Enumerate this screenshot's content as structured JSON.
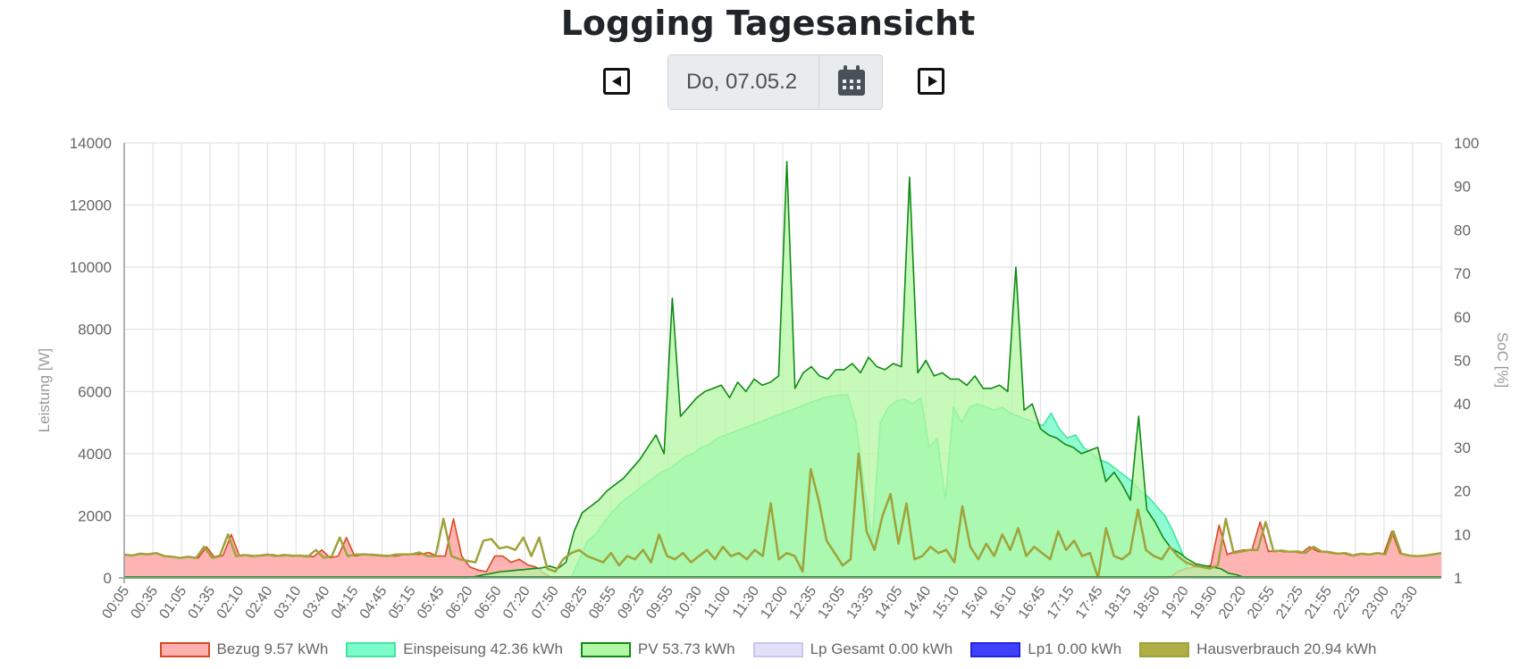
{
  "title": "Logging Tagesansicht",
  "date_value": "Do, 07.05.2",
  "icons": {
    "prev": "caret-left-square-icon",
    "next": "caret-right-square-icon",
    "calendar": "calendar-icon"
  },
  "chart_data": {
    "type": "area",
    "ylabel": "Leistung [W]",
    "y2label": "SoC [%]",
    "ylim": [
      0,
      14000
    ],
    "y2lim": [
      1,
      100
    ],
    "yticks": [
      "14000",
      "12000",
      "10000",
      "8000",
      "6000",
      "4000",
      "2000",
      "0"
    ],
    "y2ticks": [
      "100",
      "90",
      "80",
      "70",
      "60",
      "50",
      "40",
      "30",
      "20",
      "10",
      "1"
    ],
    "xticks": [
      "00:05",
      "00:35",
      "01:05",
      "01:35",
      "02:10",
      "02:40",
      "03:10",
      "03:40",
      "04:15",
      "04:45",
      "05:15",
      "05:45",
      "06:20",
      "06:50",
      "07:20",
      "07:50",
      "08:25",
      "08:55",
      "09:25",
      "09:55",
      "10:30",
      "11:00",
      "11:30",
      "12:00",
      "12:35",
      "13:05",
      "13:35",
      "14:05",
      "14:40",
      "15:10",
      "15:40",
      "16:10",
      "16:45",
      "17:15",
      "17:45",
      "18:15",
      "18:50",
      "19:20",
      "19:50",
      "20:20",
      "20:55",
      "21:25",
      "21:55",
      "22:25",
      "23:00",
      "23:30"
    ],
    "grid": true,
    "legend_position": "bottom",
    "series": [
      {
        "name": "Bezug 9.57 kWh",
        "fill": "#ffb0b0",
        "stroke": "#d84a1f",
        "values": [
          750,
          720,
          780,
          760,
          800,
          700,
          680,
          640,
          680,
          640,
          1000,
          650,
          720,
          1400,
          700,
          740,
          700,
          720,
          750,
          700,
          740,
          710,
          720,
          680,
          900,
          650,
          700,
          1300,
          700,
          750,
          760,
          740,
          720,
          700,
          750,
          760,
          760,
          820,
          700,
          700,
          1900,
          700,
          350,
          250,
          200,
          700,
          700,
          500,
          600,
          420,
          350,
          150,
          0,
          0,
          0,
          0,
          0,
          0,
          0,
          0,
          0,
          0,
          0,
          0,
          0,
          0,
          0,
          0,
          0,
          0,
          0,
          0,
          0,
          0,
          0,
          0,
          0,
          0,
          0,
          0,
          0,
          0,
          0,
          0,
          0,
          0,
          0,
          0,
          0,
          0,
          0,
          0,
          0,
          0,
          0,
          0,
          0,
          0,
          0,
          0,
          0,
          0,
          0,
          0,
          0,
          0,
          0,
          0,
          0,
          0,
          0,
          0,
          0,
          0,
          0,
          0,
          0,
          0,
          0,
          0,
          0,
          0,
          0,
          0,
          0,
          0,
          0,
          0,
          200,
          300,
          350,
          350,
          400,
          1700,
          750,
          850,
          900,
          900,
          1800,
          850,
          880,
          840,
          850,
          800,
          1000,
          850,
          830,
          780,
          800,
          720,
          780,
          750,
          800,
          760,
          1500,
          780,
          720,
          700,
          720,
          760,
          800
        ]
      },
      {
        "name": "Einspeisung 42.36 kWh",
        "fill": "#7dfcca",
        "stroke": "#3ee7a0",
        "values": [
          0,
          0,
          0,
          0,
          0,
          0,
          0,
          0,
          0,
          0,
          0,
          0,
          0,
          0,
          0,
          0,
          0,
          0,
          0,
          0,
          0,
          0,
          0,
          0,
          0,
          0,
          0,
          0,
          0,
          0,
          0,
          0,
          0,
          0,
          0,
          0,
          0,
          0,
          0,
          0,
          0,
          0,
          0,
          0,
          0,
          0,
          0,
          0,
          0,
          0,
          0,
          0,
          0,
          0,
          0,
          0,
          600,
          1200,
          1400,
          1800,
          2100,
          2400,
          2600,
          2800,
          3000,
          3200,
          3400,
          3500,
          3700,
          3900,
          4000,
          4200,
          4300,
          4500,
          4600,
          4700,
          4800,
          4900,
          5000,
          5100,
          5200,
          5300,
          5400,
          5500,
          5600,
          5700,
          5800,
          5850,
          5880,
          5900,
          5000,
          3000,
          1200,
          5000,
          5500,
          5700,
          5750,
          5600,
          5800,
          4200,
          4500,
          2500,
          5500,
          5000,
          5500,
          5600,
          5500,
          5400,
          5500,
          5300,
          5200,
          5100,
          5000,
          4900,
          5300,
          4800,
          4500,
          4600,
          4200,
          4000,
          3800,
          3700,
          3500,
          3300,
          3100,
          2800,
          2600,
          2300,
          2000,
          1500,
          900,
          200,
          0,
          0,
          0,
          0,
          0,
          0,
          0,
          0,
          0,
          0,
          0,
          0,
          0,
          0,
          0,
          0,
          0,
          0,
          0,
          0,
          0,
          0,
          0,
          0,
          0,
          0,
          0,
          0,
          0,
          0,
          0
        ]
      },
      {
        "name": "PV 53.73 kWh",
        "fill": "#b4f7a4",
        "stroke": "#108a14",
        "values": [
          0,
          0,
          0,
          0,
          0,
          0,
          0,
          0,
          0,
          0,
          0,
          0,
          0,
          0,
          0,
          0,
          0,
          0,
          0,
          0,
          0,
          0,
          0,
          0,
          0,
          0,
          0,
          0,
          0,
          0,
          0,
          0,
          0,
          0,
          0,
          0,
          0,
          0,
          0,
          0,
          0,
          0,
          0,
          50,
          100,
          150,
          200,
          220,
          250,
          270,
          300,
          320,
          380,
          300,
          500,
          1500,
          2100,
          2300,
          2500,
          2800,
          3000,
          3200,
          3500,
          3800,
          4200,
          4600,
          4000,
          9000,
          5200,
          5500,
          5800,
          6000,
          6100,
          6200,
          5800,
          6300,
          6000,
          6400,
          6200,
          6300,
          6500,
          13400,
          6100,
          6600,
          6800,
          6500,
          6400,
          6700,
          6700,
          6900,
          6600,
          7100,
          6800,
          6700,
          6900,
          6800,
          12900,
          6600,
          7000,
          6500,
          6600,
          6400,
          6400,
          6200,
          6500,
          6100,
          6100,
          6200,
          6000,
          10000,
          5400,
          5600,
          4800,
          4600,
          4500,
          4300,
          4200,
          4000,
          4100,
          4200,
          3100,
          3400,
          3000,
          2500,
          5200,
          2200,
          1800,
          1300,
          950,
          800,
          600,
          450,
          400,
          350,
          300,
          150,
          100,
          0,
          0,
          0,
          0,
          0,
          0,
          0,
          0,
          0,
          0,
          0,
          0,
          0,
          0,
          0,
          0,
          0,
          0,
          0,
          0,
          0,
          0,
          0,
          0,
          0
        ]
      },
      {
        "name": "Lp Gesamt 0.00 kWh",
        "fill": "#e2e0f8",
        "stroke": "#c9c7ef",
        "values": []
      },
      {
        "name": "Lp1 0.00 kWh",
        "fill": "#4040ff",
        "stroke": "#2222e0",
        "values": []
      },
      {
        "name": "Hausverbrauch 20.94 kWh",
        "fill": "#afaf46",
        "stroke": "#9ea33a",
        "values": [
          750,
          720,
          780,
          760,
          800,
          700,
          680,
          640,
          680,
          640,
          1000,
          650,
          720,
          1400,
          700,
          740,
          700,
          720,
          750,
          700,
          740,
          710,
          720,
          680,
          900,
          650,
          700,
          1300,
          700,
          750,
          760,
          740,
          720,
          700,
          750,
          760,
          760,
          820,
          700,
          700,
          1900,
          700,
          600,
          550,
          500,
          1200,
          1250,
          950,
          1000,
          900,
          1300,
          700,
          1300,
          300,
          200,
          600,
          800,
          900,
          700,
          600,
          500,
          800,
          400,
          700,
          600,
          900,
          500,
          1400,
          700,
          600,
          800,
          500,
          700,
          900,
          600,
          1000,
          700,
          800,
          600,
          900,
          700,
          2400,
          600,
          800,
          700,
          200,
          3500,
          2500,
          1200,
          800,
          400,
          600,
          4000,
          1500,
          900,
          2000,
          2700,
          1100,
          2400,
          600,
          700,
          1000,
          800,
          900,
          500,
          2300,
          1000,
          600,
          1100,
          700,
          1400,
          900,
          1600,
          700,
          1000,
          800,
          600,
          1500,
          900,
          1200,
          700,
          800,
          0,
          1600,
          700,
          600,
          800,
          2200,
          900,
          700,
          600,
          1000,
          700,
          500,
          400,
          350,
          300,
          400,
          1900,
          800,
          850,
          900,
          900,
          1800,
          850,
          880,
          840,
          850,
          800,
          1000,
          850,
          830,
          780,
          800,
          720,
          780,
          750,
          800,
          760,
          1500,
          780,
          720,
          700,
          720,
          760,
          800
        ]
      }
    ]
  }
}
